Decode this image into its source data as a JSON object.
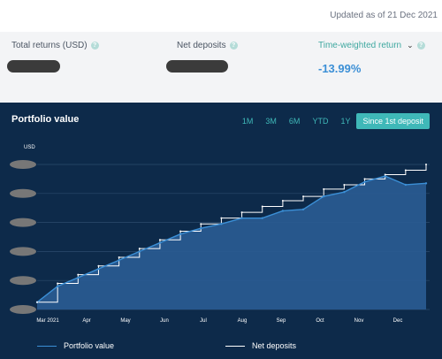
{
  "updated": "Updated as of 21 Dec 2021",
  "summary": {
    "total_returns_label": "Total returns (USD)",
    "net_deposits_label": "Net deposits",
    "twr_label": "Time-weighted return",
    "twr_value": "-13.99%"
  },
  "panel": {
    "title": "Portfolio value",
    "ranges": [
      "1M",
      "3M",
      "6M",
      "YTD",
      "1Y",
      "Since 1st deposit"
    ],
    "active_range": "Since 1st deposit"
  },
  "colors": {
    "panel_bg": "#0d2a4a",
    "accent": "#3fb8b8",
    "portfolio_line": "#3b8fd6",
    "deposit_line": "#ffffff",
    "twr": "#3b8fd6"
  },
  "chart_data": {
    "type": "area",
    "ylabel": "USD",
    "y_tick_labels_redacted": true,
    "x_tick_labels": [
      "Mar 2021",
      "Apr",
      "May",
      "Jun",
      "Jul",
      "Aug",
      "Sep",
      "Oct",
      "Nov",
      "Dec"
    ],
    "x": [
      "Mar 2021",
      "Mar",
      "Apr",
      "Apr",
      "May",
      "May",
      "Jun",
      "Jun",
      "Jul",
      "Jul",
      "Aug",
      "Aug",
      "Sep",
      "Sep",
      "Oct",
      "Oct",
      "Nov",
      "Nov",
      "Dec",
      "Dec"
    ],
    "series": [
      {
        "name": "Portfolio value",
        "values": [
          0.05,
          0.16,
          0.22,
          0.28,
          0.34,
          0.4,
          0.46,
          0.52,
          0.56,
          0.59,
          0.63,
          0.63,
          0.68,
          0.69,
          0.78,
          0.81,
          0.88,
          0.92,
          0.86,
          0.87
        ]
      },
      {
        "name": "Net deposits",
        "values": [
          0.05,
          0.18,
          0.24,
          0.3,
          0.36,
          0.42,
          0.48,
          0.54,
          0.59,
          0.63,
          0.67,
          0.71,
          0.75,
          0.78,
          0.83,
          0.86,
          0.9,
          0.93,
          0.96,
          1.0
        ]
      }
    ],
    "ylim": [
      0,
      1
    ],
    "legend": "bottom"
  }
}
